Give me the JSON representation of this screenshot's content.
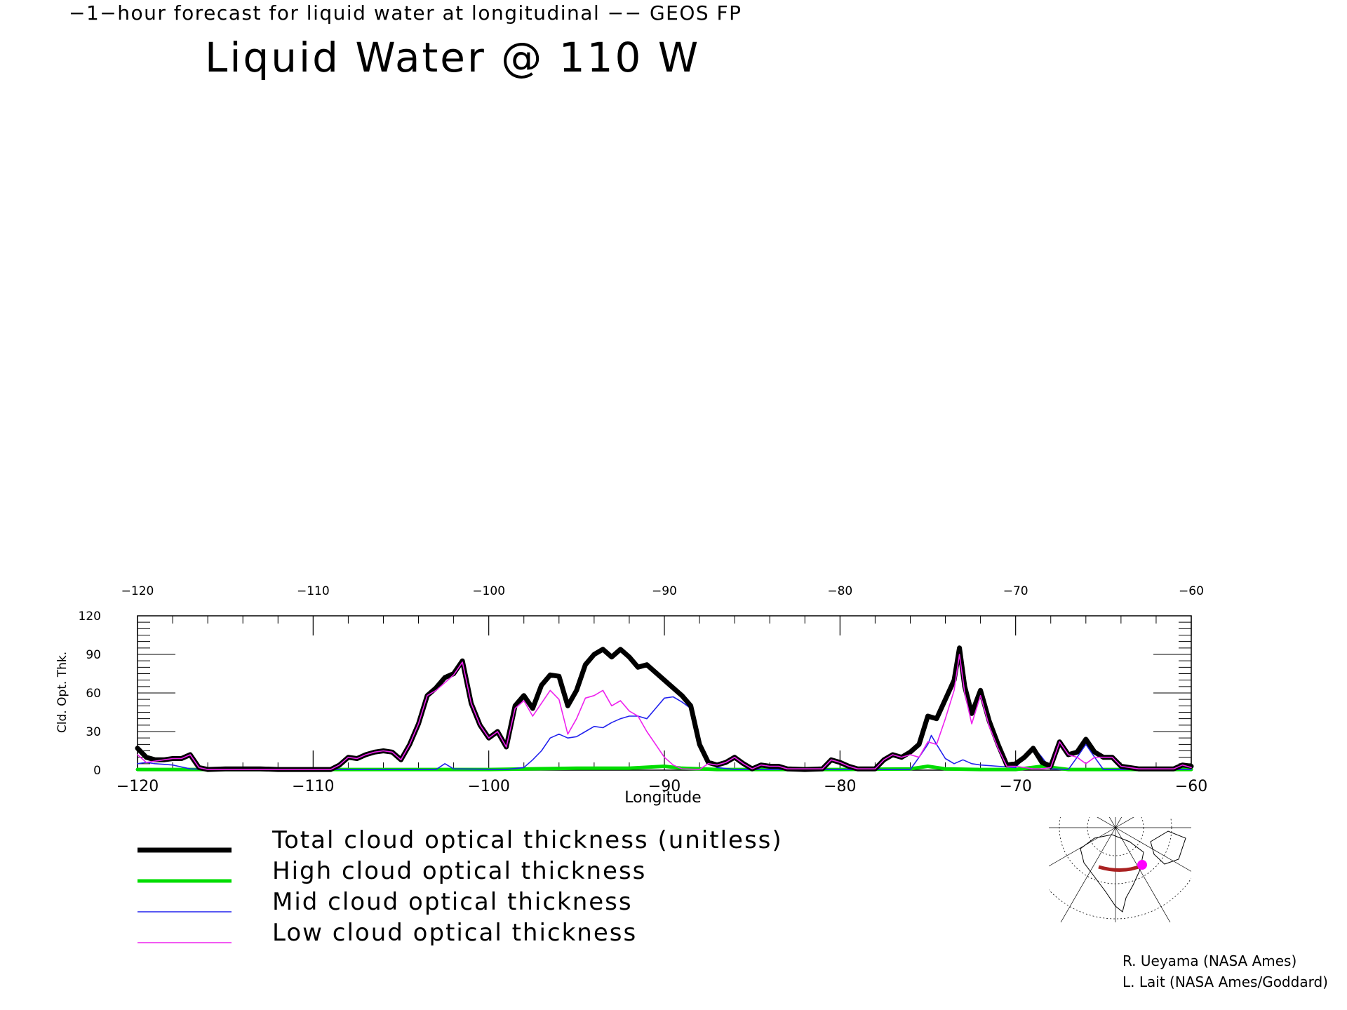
{
  "header": {
    "subtitle": "−1−hour forecast for liquid water at longitudinal −− GEOS FP",
    "title": "Liquid Water @ 110 W"
  },
  "credits": {
    "line1": "R. Ueyama (NASA Ames)",
    "line2": "L. Lait (NASA Ames/Goddard)"
  },
  "colors": {
    "total": "#000000",
    "high": "#00dd00",
    "mid": "#2222ee",
    "low": "#ee22ee",
    "map_path": "#aa2222",
    "map_marker": "#ff00ff"
  },
  "chart_data": {
    "type": "line",
    "xlabel": "Longitude",
    "ylabel": "Cld. Opt. Thk.",
    "xlim": [
      -120,
      -60
    ],
    "ylim": [
      0,
      120
    ],
    "bottom_tick_labels": [
      "−120",
      "−110",
      "−100",
      "−90",
      "−80",
      "−70",
      "−60"
    ],
    "top_tick_labels": [
      "−120",
      "−110",
      "−100",
      "−90",
      "−80",
      "−70",
      "−60"
    ],
    "y_tick_labels": [
      "0",
      "30",
      "60",
      "90",
      "120"
    ],
    "x_ticks": [
      -120,
      -110,
      -100,
      -90,
      -80,
      -70,
      -60
    ],
    "y_ticks": [
      0,
      30,
      60,
      90,
      120
    ],
    "legend_placement": "bottom-left",
    "series": [
      {
        "name": "Total cloud optical thickness (unitless)",
        "color": "#000000",
        "points": [
          [
            -120,
            17
          ],
          [
            -119.5,
            10
          ],
          [
            -119,
            8
          ],
          [
            -118.5,
            8
          ],
          [
            -118,
            9
          ],
          [
            -117.5,
            9
          ],
          [
            -117,
            12
          ],
          [
            -116.7,
            6
          ],
          [
            -116.5,
            2
          ],
          [
            -116,
            0.5
          ],
          [
            -115,
            1
          ],
          [
            -114,
            1
          ],
          [
            -113,
            1
          ],
          [
            -112,
            0.5
          ],
          [
            -111,
            0.5
          ],
          [
            -110,
            0.5
          ],
          [
            -109,
            0.5
          ],
          [
            -108.5,
            4
          ],
          [
            -108,
            10
          ],
          [
            -107.5,
            9
          ],
          [
            -107,
            12
          ],
          [
            -106.5,
            14
          ],
          [
            -106,
            15
          ],
          [
            -105.5,
            14
          ],
          [
            -105,
            8
          ],
          [
            -104.5,
            20
          ],
          [
            -104,
            36
          ],
          [
            -103.5,
            58
          ],
          [
            -103,
            64
          ],
          [
            -102.5,
            72
          ],
          [
            -102,
            75
          ],
          [
            -101.5,
            85
          ],
          [
            -101,
            52
          ],
          [
            -100.5,
            35
          ],
          [
            -100,
            25
          ],
          [
            -99.5,
            30
          ],
          [
            -99,
            18
          ],
          [
            -98.5,
            50
          ],
          [
            -98,
            58
          ],
          [
            -97.5,
            48
          ],
          [
            -97,
            66
          ],
          [
            -96.5,
            74
          ],
          [
            -96,
            73
          ],
          [
            -95.5,
            50
          ],
          [
            -95,
            62
          ],
          [
            -94.5,
            82
          ],
          [
            -94,
            90
          ],
          [
            -93.5,
            94
          ],
          [
            -93,
            88
          ],
          [
            -92.5,
            94
          ],
          [
            -92,
            88
          ],
          [
            -91.5,
            80
          ],
          [
            -91,
            82
          ],
          [
            -90.5,
            76
          ],
          [
            -90,
            70
          ],
          [
            -89.5,
            64
          ],
          [
            -89,
            58
          ],
          [
            -88.5,
            50
          ],
          [
            -88,
            20
          ],
          [
            -87.5,
            6
          ],
          [
            -87,
            4
          ],
          [
            -86.5,
            6
          ],
          [
            -86,
            10
          ],
          [
            -85.5,
            5
          ],
          [
            -85,
            1
          ],
          [
            -84.5,
            4
          ],
          [
            -84,
            3
          ],
          [
            -83.5,
            3
          ],
          [
            -83,
            1
          ],
          [
            -82,
            0.5
          ],
          [
            -81,
            1
          ],
          [
            -80.5,
            8
          ],
          [
            -80,
            6
          ],
          [
            -79.5,
            3
          ],
          [
            -79,
            1
          ],
          [
            -78,
            1
          ],
          [
            -77.5,
            8
          ],
          [
            -77,
            12
          ],
          [
            -76.5,
            10
          ],
          [
            -76,
            14
          ],
          [
            -75.5,
            20
          ],
          [
            -75,
            42
          ],
          [
            -74.5,
            40
          ],
          [
            -74,
            55
          ],
          [
            -73.5,
            70
          ],
          [
            -73.2,
            95
          ],
          [
            -72.9,
            65
          ],
          [
            -72.5,
            44
          ],
          [
            -72,
            62
          ],
          [
            -71.5,
            38
          ],
          [
            -71,
            20
          ],
          [
            -70.5,
            4
          ],
          [
            -70,
            5
          ],
          [
            -69.5,
            10
          ],
          [
            -69,
            17
          ],
          [
            -68.5,
            6
          ],
          [
            -68,
            3
          ],
          [
            -67.5,
            22
          ],
          [
            -67,
            12
          ],
          [
            -66.5,
            14
          ],
          [
            -66,
            24
          ],
          [
            -65.5,
            14
          ],
          [
            -65,
            10
          ],
          [
            -64.5,
            10
          ],
          [
            -64,
            3
          ],
          [
            -63,
            1
          ],
          [
            -62,
            1
          ],
          [
            -61,
            1
          ],
          [
            -60.5,
            4
          ],
          [
            -60,
            3
          ]
        ]
      },
      {
        "name": "High cloud optical thickness",
        "color": "#00dd00",
        "points": [
          [
            -120,
            0.5
          ],
          [
            -110,
            0.5
          ],
          [
            -100,
            0.5
          ],
          [
            -95,
            1.5
          ],
          [
            -92,
            1.5
          ],
          [
            -90,
            3
          ],
          [
            -89,
            1.5
          ],
          [
            -87,
            0.5
          ],
          [
            -80,
            0.5
          ],
          [
            -76,
            1
          ],
          [
            -75,
            3
          ],
          [
            -74,
            1
          ],
          [
            -72,
            0.5
          ],
          [
            -70,
            0.5
          ],
          [
            -68.5,
            3
          ],
          [
            -67,
            0.5
          ],
          [
            -60,
            0.5
          ]
        ]
      },
      {
        "name": "Mid cloud optical thickness",
        "color": "#2222ee",
        "points": [
          [
            -120,
            5
          ],
          [
            -119.5,
            6
          ],
          [
            -119,
            5
          ],
          [
            -118,
            4
          ],
          [
            -117,
            1
          ],
          [
            -116,
            0.5
          ],
          [
            -114,
            2
          ],
          [
            -113,
            0.5
          ],
          [
            -103,
            0.5
          ],
          [
            -102.5,
            5
          ],
          [
            -102,
            1
          ],
          [
            -99,
            0.5
          ],
          [
            -98,
            2
          ],
          [
            -97.5,
            8
          ],
          [
            -97,
            15
          ],
          [
            -96.5,
            25
          ],
          [
            -96,
            28
          ],
          [
            -95.5,
            25
          ],
          [
            -95,
            26
          ],
          [
            -94.5,
            30
          ],
          [
            -94,
            34
          ],
          [
            -93.5,
            33
          ],
          [
            -93,
            37
          ],
          [
            -92.5,
            40
          ],
          [
            -92,
            42
          ],
          [
            -91.5,
            42
          ],
          [
            -91,
            40
          ],
          [
            -90.5,
            48
          ],
          [
            -90,
            56
          ],
          [
            -89.5,
            57
          ],
          [
            -89,
            53
          ],
          [
            -88.5,
            48
          ],
          [
            -88,
            20
          ],
          [
            -87.5,
            6
          ],
          [
            -87,
            2
          ],
          [
            -86,
            0.5
          ],
          [
            -76,
            0.5
          ],
          [
            -75.5,
            10
          ],
          [
            -75,
            20
          ],
          [
            -74.8,
            27
          ],
          [
            -74.5,
            20
          ],
          [
            -74,
            9
          ],
          [
            -73.5,
            5
          ],
          [
            -73,
            8
          ],
          [
            -72.5,
            5
          ],
          [
            -72,
            4
          ],
          [
            -71,
            3
          ],
          [
            -70,
            2
          ],
          [
            -69.5,
            10
          ],
          [
            -69,
            18
          ],
          [
            -68.5,
            10
          ],
          [
            -68,
            1
          ],
          [
            -67,
            0.5
          ],
          [
            -66.5,
            10
          ],
          [
            -66,
            20
          ],
          [
            -65.5,
            10
          ],
          [
            -65,
            0.5
          ],
          [
            -60,
            0.5
          ]
        ]
      },
      {
        "name": "Low cloud optical thickness",
        "color": "#ee22ee",
        "points": [
          [
            -120,
            12
          ],
          [
            -119.5,
            6
          ],
          [
            -119,
            7
          ],
          [
            -118.5,
            8
          ],
          [
            -118,
            9
          ],
          [
            -117.5,
            9
          ],
          [
            -117,
            12
          ],
          [
            -116.7,
            6
          ],
          [
            -116.5,
            2
          ],
          [
            -116,
            0.5
          ],
          [
            -110,
            0.5
          ],
          [
            -109,
            0.5
          ],
          [
            -108.5,
            4
          ],
          [
            -108,
            10
          ],
          [
            -107.5,
            9
          ],
          [
            -107,
            12
          ],
          [
            -106.5,
            14
          ],
          [
            -106,
            15
          ],
          [
            -105.5,
            14
          ],
          [
            -105,
            8
          ],
          [
            -104.5,
            20
          ],
          [
            -104,
            36
          ],
          [
            -103.5,
            58
          ],
          [
            -103,
            62
          ],
          [
            -102.5,
            68
          ],
          [
            -102,
            74
          ],
          [
            -101.5,
            84
          ],
          [
            -101,
            52
          ],
          [
            -100.5,
            35
          ],
          [
            -100,
            25
          ],
          [
            -99.5,
            30
          ],
          [
            -99,
            18
          ],
          [
            -98.5,
            48
          ],
          [
            -98,
            54
          ],
          [
            -97.5,
            42
          ],
          [
            -97,
            52
          ],
          [
            -96.5,
            62
          ],
          [
            -96,
            55
          ],
          [
            -95.5,
            28
          ],
          [
            -95,
            40
          ],
          [
            -94.5,
            56
          ],
          [
            -94,
            58
          ],
          [
            -93.5,
            62
          ],
          [
            -93,
            50
          ],
          [
            -92.5,
            54
          ],
          [
            -92,
            46
          ],
          [
            -91.5,
            42
          ],
          [
            -91,
            30
          ],
          [
            -90.5,
            20
          ],
          [
            -90,
            10
          ],
          [
            -89.5,
            4
          ],
          [
            -89,
            1
          ],
          [
            -88,
            0.5
          ],
          [
            -87.5,
            5
          ],
          [
            -87,
            4
          ],
          [
            -86.5,
            6
          ],
          [
            -86,
            10
          ],
          [
            -85.5,
            5
          ],
          [
            -85,
            1
          ],
          [
            -84.5,
            4
          ],
          [
            -84,
            3
          ],
          [
            -83.5,
            3
          ],
          [
            -83,
            1
          ],
          [
            -81,
            1
          ],
          [
            -80.5,
            8
          ],
          [
            -80,
            6
          ],
          [
            -79.5,
            3
          ],
          [
            -79,
            1
          ],
          [
            -78,
            1
          ],
          [
            -77.5,
            8
          ],
          [
            -77,
            12
          ],
          [
            -76.5,
            10
          ],
          [
            -76,
            12
          ],
          [
            -75.5,
            10
          ],
          [
            -75,
            22
          ],
          [
            -74.5,
            20
          ],
          [
            -74,
            40
          ],
          [
            -73.5,
            62
          ],
          [
            -73.2,
            90
          ],
          [
            -72.9,
            60
          ],
          [
            -72.5,
            36
          ],
          [
            -72,
            58
          ],
          [
            -71.5,
            34
          ],
          [
            -71,
            17
          ],
          [
            -70.5,
            3
          ],
          [
            -70,
            3
          ],
          [
            -69.5,
            2
          ],
          [
            -69,
            1
          ],
          [
            -68.5,
            1
          ],
          [
            -68,
            2
          ],
          [
            -67.5,
            22
          ],
          [
            -67,
            12
          ],
          [
            -66.5,
            10
          ],
          [
            -66,
            5
          ],
          [
            -65.5,
            10
          ],
          [
            -65,
            10
          ],
          [
            -64.5,
            10
          ],
          [
            -64,
            3
          ],
          [
            -63,
            1
          ],
          [
            -61,
            1
          ],
          [
            -60.5,
            4
          ],
          [
            -60,
            2
          ]
        ]
      }
    ]
  }
}
